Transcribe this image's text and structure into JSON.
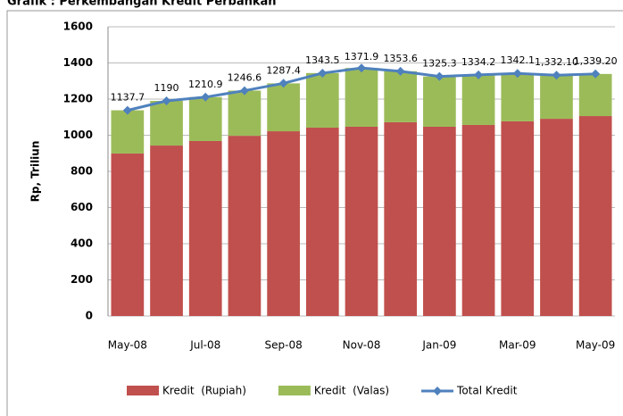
{
  "chart_data": {
    "type": "bar",
    "title": "Grafik : Perkembangan Kredit Perbankan",
    "y_label": "Rp, Triliun",
    "categories": [
      "May-08",
      null,
      "Jul-08",
      null,
      "Sep-08",
      null,
      "Nov-08",
      null,
      "Jan-09",
      null,
      "Mar-09",
      null,
      "May-09"
    ],
    "series": [
      {
        "name": "Kredit  (Rupiah)",
        "type": "bar",
        "color": "#c0504d",
        "values": [
          899,
          943,
          968,
          997,
          1022,
          1042,
          1047,
          1072,
          1047,
          1057,
          1077,
          1091,
          1106
        ]
      },
      {
        "name": "Kredit  (Valas)",
        "type": "bar",
        "color": "#9bbb59",
        "values": [
          239,
          247,
          243,
          250,
          265,
          302,
          325,
          282,
          278,
          277,
          265,
          241,
          233
        ]
      },
      {
        "name": "Total Kredit",
        "type": "line",
        "color": "#4f81bd",
        "values": [
          1137.7,
          1190,
          1210.9,
          1246.6,
          1287.4,
          1343.5,
          1371.9,
          1353.6,
          1325.3,
          1334.2,
          1342.1,
          1332.1,
          1339.2
        ],
        "value_labels": [
          "1137.7",
          "1190",
          "1210.9",
          "1246.6",
          "1287.4",
          "1343.5",
          "1371.9",
          "1353.6",
          "1325.3",
          "1334.2",
          "1342.1",
          "1,332.10",
          "1,339.20"
        ]
      }
    ],
    "ylim": [
      0,
      1600
    ],
    "yticks": [
      0,
      200,
      400,
      600,
      800,
      1000,
      1200,
      1400,
      1600
    ],
    "grid": true
  }
}
